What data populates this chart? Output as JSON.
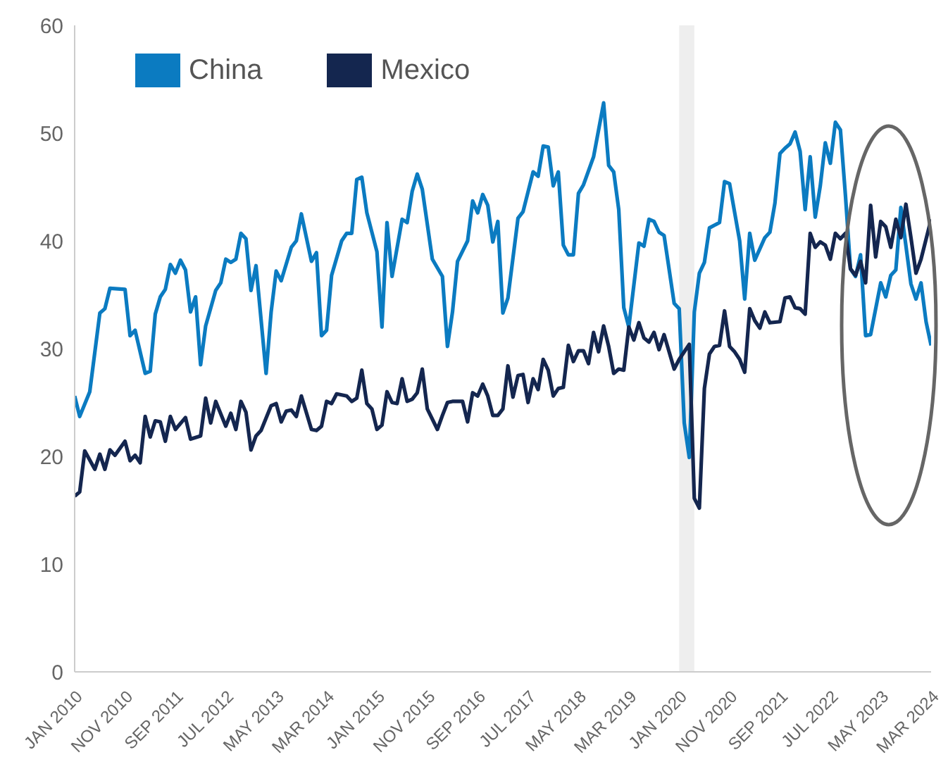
{
  "chart_data": {
    "type": "line",
    "xlim": [
      "2010-01",
      "2024-03"
    ],
    "ylim": [
      0,
      60
    ],
    "yticks": [
      0,
      10,
      20,
      30,
      40,
      50,
      60
    ],
    "xticks": [
      {
        "value": "2010-01",
        "label": "JAN 2010"
      },
      {
        "value": "2010-11",
        "label": "NOV 2010"
      },
      {
        "value": "2011-09",
        "label": "SEP 2011"
      },
      {
        "value": "2012-07",
        "label": "JUL 2012"
      },
      {
        "value": "2013-05",
        "label": "MAY 2013"
      },
      {
        "value": "2014-03",
        "label": "MAR 2014"
      },
      {
        "value": "2015-01",
        "label": "JAN 2015"
      },
      {
        "value": "2015-11",
        "label": "NOV 2015"
      },
      {
        "value": "2016-09",
        "label": "SEP 2016"
      },
      {
        "value": "2017-07",
        "label": "JUL 2017"
      },
      {
        "value": "2018-05",
        "label": "MAY 2018"
      },
      {
        "value": "2019-03",
        "label": "MAR 2019"
      },
      {
        "value": "2020-01",
        "label": "JAN 2020"
      },
      {
        "value": "2020-11",
        "label": "NOV 2020"
      },
      {
        "value": "2021-09",
        "label": "SEP 2021"
      },
      {
        "value": "2022-07",
        "label": "JUL 2022"
      },
      {
        "value": "2023-05",
        "label": "MAY 2023"
      },
      {
        "value": "2024-03",
        "label": "MAR 2024"
      }
    ],
    "grid": false,
    "legend": "top left",
    "marker": "none",
    "line_style": "solid",
    "bands": [
      {
        "axis": "x",
        "from": "2020-01",
        "to": "2020-04",
        "color": "#eeeeee"
      }
    ],
    "series": [
      {
        "name": "China",
        "color": "#0b7bc1",
        "x": [
          "2010-01",
          "2010-02",
          "2010-04",
          "2010-06",
          "2010-07",
          "2010-08",
          "2010-11",
          "2010-12",
          "2011-01",
          "2011-03",
          "2011-04",
          "2011-05",
          "2011-06",
          "2011-07",
          "2011-08",
          "2011-09",
          "2011-10",
          "2011-11",
          "2011-12",
          "2012-01",
          "2012-02",
          "2012-03",
          "2012-05",
          "2012-06",
          "2012-07",
          "2012-08",
          "2012-09",
          "2012-10",
          "2012-11",
          "2012-12",
          "2013-01",
          "2013-03",
          "2013-04",
          "2013-05",
          "2013-06",
          "2013-08",
          "2013-09",
          "2013-10",
          "2013-12",
          "2014-01",
          "2014-02",
          "2014-03",
          "2014-04",
          "2014-06",
          "2014-07",
          "2014-08",
          "2014-09",
          "2014-10",
          "2014-11",
          "2015-01",
          "2015-02",
          "2015-03",
          "2015-04",
          "2015-06",
          "2015-07",
          "2015-08",
          "2015-09",
          "2015-10",
          "2015-12",
          "2016-02",
          "2016-03",
          "2016-04",
          "2016-05",
          "2016-07",
          "2016-08",
          "2016-09",
          "2016-10",
          "2016-11",
          "2016-12",
          "2017-01",
          "2017-02",
          "2017-03",
          "2017-05",
          "2017-06",
          "2017-08",
          "2017-09",
          "2017-10",
          "2017-11",
          "2017-12",
          "2018-01",
          "2018-02",
          "2018-03",
          "2018-04",
          "2018-05",
          "2018-06",
          "2018-08",
          "2018-10",
          "2018-11",
          "2018-12",
          "2019-01",
          "2019-02",
          "2019-03",
          "2019-05",
          "2019-06",
          "2019-07",
          "2019-08",
          "2019-09",
          "2019-10",
          "2019-12",
          "2020-01",
          "2020-02",
          "2020-03",
          "2020-04",
          "2020-05",
          "2020-06",
          "2020-07",
          "2020-09",
          "2020-10",
          "2020-11",
          "2021-01",
          "2021-02",
          "2021-03",
          "2021-04",
          "2021-06",
          "2021-07",
          "2021-08",
          "2021-09",
          "2021-10",
          "2021-11",
          "2021-12",
          "2022-01",
          "2022-02",
          "2022-03",
          "2022-04",
          "2022-05",
          "2022-06",
          "2022-07",
          "2022-08",
          "2022-09",
          "2022-10",
          "2022-11",
          "2022-12",
          "2023-01",
          "2023-02",
          "2023-03",
          "2023-05",
          "2023-06",
          "2023-07",
          "2023-08",
          "2023-09",
          "2023-11",
          "2023-12",
          "2024-01",
          "2024-02",
          "2024-03"
        ],
        "values": [
          25.6,
          23.7,
          26.0,
          33.3,
          33.7,
          35.6,
          35.5,
          31.2,
          31.7,
          27.7,
          27.9,
          33.2,
          34.8,
          35.5,
          37.8,
          37.0,
          38.2,
          37.3,
          33.4,
          34.8,
          28.5,
          32.1,
          35.4,
          36.1,
          38.3,
          38.0,
          38.3,
          40.7,
          40.2,
          35.4,
          37.7,
          27.7,
          33.4,
          37.2,
          36.3,
          39.4,
          40.0,
          42.5,
          38.1,
          38.9,
          31.2,
          31.7,
          36.8,
          40.0,
          40.7,
          40.7,
          45.7,
          45.9,
          42.6,
          39.0,
          32.0,
          41.7,
          36.7,
          42.0,
          41.7,
          44.6,
          46.2,
          44.8,
          38.3,
          36.7,
          30.2,
          33.4,
          38.1,
          40.0,
          43.7,
          42.6,
          44.3,
          43.3,
          39.9,
          41.8,
          33.3,
          34.7,
          42.1,
          42.7,
          46.4,
          46.0,
          48.8,
          48.7,
          45.1,
          46.4,
          39.6,
          38.7,
          38.7,
          44.4,
          45.2,
          47.8,
          52.8,
          47.0,
          46.4,
          42.9,
          33.8,
          32.0,
          39.8,
          39.5,
          42.0,
          41.8,
          40.8,
          40.5,
          34.2,
          33.7,
          23.1,
          19.9,
          33.4,
          37.0,
          38.0,
          41.2,
          41.7,
          45.5,
          45.3,
          40.0,
          34.6,
          40.7,
          38.2,
          40.3,
          40.8,
          43.5,
          48.1,
          48.6,
          49.0,
          50.1,
          48.3,
          42.9,
          47.8,
          42.2,
          45.1,
          49.1,
          47.2,
          51.0,
          50.3,
          44.2,
          37.4,
          36.7,
          38.7,
          31.2,
          31.3,
          36.1,
          34.8,
          36.8,
          37.3,
          43.1,
          36.0,
          34.6,
          36.1,
          32.5,
          30.3
        ]
      },
      {
        "name": "Mexico",
        "color": "#14264f",
        "x": [
          "2010-01",
          "2010-02",
          "2010-03",
          "2010-05",
          "2010-06",
          "2010-07",
          "2010-08",
          "2010-09",
          "2010-11",
          "2010-12",
          "2011-01",
          "2011-02",
          "2011-03",
          "2011-04",
          "2011-05",
          "2011-06",
          "2011-07",
          "2011-08",
          "2011-09",
          "2011-11",
          "2011-12",
          "2012-02",
          "2012-03",
          "2012-04",
          "2012-05",
          "2012-07",
          "2012-08",
          "2012-09",
          "2012-10",
          "2012-11",
          "2012-12",
          "2013-01",
          "2013-02",
          "2013-04",
          "2013-05",
          "2013-06",
          "2013-07",
          "2013-08",
          "2013-09",
          "2013-10",
          "2013-12",
          "2014-01",
          "2014-02",
          "2014-03",
          "2014-04",
          "2014-05",
          "2014-07",
          "2014-08",
          "2014-09",
          "2014-10",
          "2014-11",
          "2014-12",
          "2015-01",
          "2015-02",
          "2015-03",
          "2015-04",
          "2015-05",
          "2015-06",
          "2015-07",
          "2015-08",
          "2015-09",
          "2015-10",
          "2015-11",
          "2016-01",
          "2016-02",
          "2016-03",
          "2016-04",
          "2016-06",
          "2016-07",
          "2016-08",
          "2016-09",
          "2016-10",
          "2016-11",
          "2016-12",
          "2017-01",
          "2017-02",
          "2017-03",
          "2017-04",
          "2017-05",
          "2017-06",
          "2017-07",
          "2017-08",
          "2017-09",
          "2017-10",
          "2017-11",
          "2017-12",
          "2018-01",
          "2018-02",
          "2018-03",
          "2018-04",
          "2018-05",
          "2018-06",
          "2018-07",
          "2018-08",
          "2018-09",
          "2018-10",
          "2018-11",
          "2018-12",
          "2019-01",
          "2019-02",
          "2019-03",
          "2019-04",
          "2019-05",
          "2019-06",
          "2019-07",
          "2019-08",
          "2019-09",
          "2019-10",
          "2019-12",
          "2020-01",
          "2020-03",
          "2020-04",
          "2020-05",
          "2020-06",
          "2020-07",
          "2020-08",
          "2020-09",
          "2020-10",
          "2020-11",
          "2020-12",
          "2021-01",
          "2021-02",
          "2021-03",
          "2021-04",
          "2021-05",
          "2021-06",
          "2021-07",
          "2021-09",
          "2021-10",
          "2021-11",
          "2021-12",
          "2022-01",
          "2022-02",
          "2022-03",
          "2022-04",
          "2022-05",
          "2022-06",
          "2022-07",
          "2022-08",
          "2022-09",
          "2022-10",
          "2022-11",
          "2022-12",
          "2023-01",
          "2023-02",
          "2023-03",
          "2023-04",
          "2023-05",
          "2023-06",
          "2023-07",
          "2023-08",
          "2023-09",
          "2023-10",
          "2023-11",
          "2023-12",
          "2024-01",
          "2024-03"
        ],
        "values": [
          16.3,
          16.7,
          20.5,
          18.8,
          20.2,
          18.8,
          20.6,
          20.1,
          21.4,
          19.6,
          20.1,
          19.4,
          23.7,
          21.8,
          23.3,
          23.2,
          21.4,
          23.7,
          22.5,
          23.6,
          21.6,
          21.9,
          25.4,
          23.1,
          25.1,
          22.8,
          24.0,
          22.5,
          25.1,
          24.1,
          20.6,
          21.9,
          22.4,
          24.7,
          24.9,
          23.2,
          24.2,
          24.3,
          23.7,
          25.6,
          22.5,
          22.4,
          22.8,
          25.1,
          24.9,
          25.8,
          25.6,
          25.1,
          25.4,
          28.0,
          24.9,
          24.4,
          22.5,
          22.9,
          26.0,
          25.0,
          24.9,
          27.2,
          25.1,
          25.3,
          25.9,
          28.1,
          24.4,
          22.5,
          23.8,
          25.0,
          25.1,
          25.1,
          23.2,
          25.9,
          25.6,
          26.7,
          25.6,
          23.8,
          23.8,
          24.4,
          28.4,
          25.5,
          27.5,
          27.6,
          25.0,
          27.2,
          26.2,
          29.0,
          28.0,
          25.6,
          26.3,
          26.4,
          30.3,
          28.8,
          29.8,
          29.8,
          28.6,
          31.5,
          29.7,
          32.1,
          30.2,
          27.7,
          28.1,
          28.0,
          32.0,
          30.8,
          32.4,
          31.0,
          30.6,
          31.5,
          29.9,
          31.3,
          28.1,
          29.0,
          30.4,
          16.1,
          15.2,
          26.3,
          29.5,
          30.2,
          30.3,
          33.5,
          30.2,
          29.7,
          29.0,
          27.8,
          33.7,
          32.6,
          31.9,
          33.4,
          32.4,
          32.5,
          34.7,
          34.8,
          33.8,
          33.7,
          33.2,
          40.7,
          39.4,
          39.9,
          39.6,
          38.3,
          40.7,
          40.2,
          40.7,
          37.4,
          36.8,
          38.1,
          36.1,
          43.3,
          38.5,
          41.8,
          41.3,
          39.4,
          42.0,
          40.3,
          43.4,
          40.3,
          37.0,
          38.3,
          42.0
        ]
      }
    ]
  }
}
